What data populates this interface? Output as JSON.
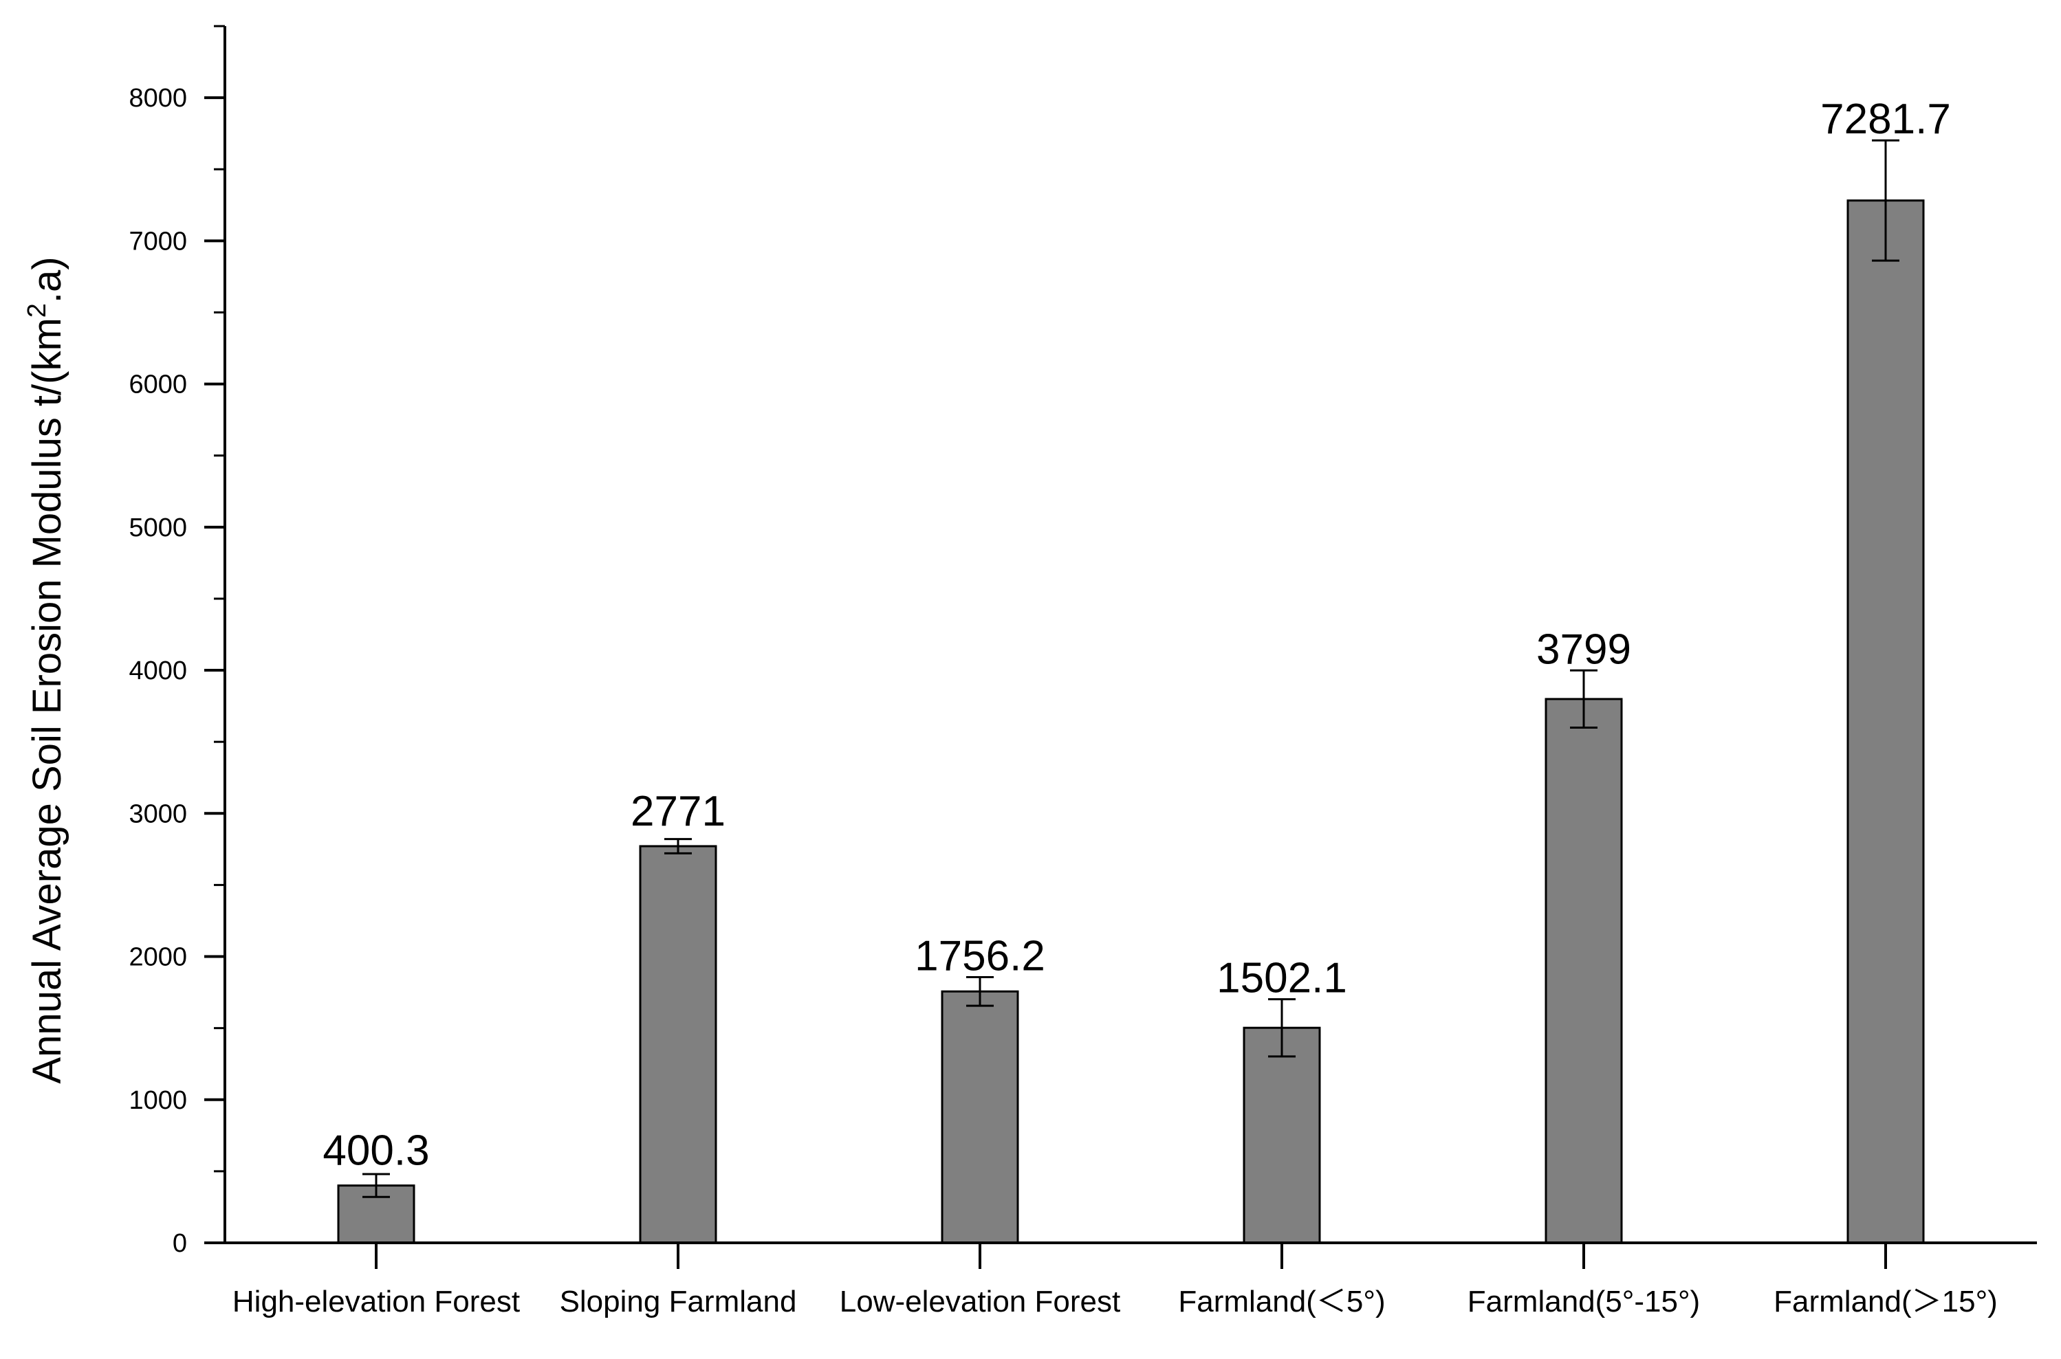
{
  "chart_data": {
    "type": "bar",
    "title": "",
    "xlabel": "",
    "ylabel": "Annual Average Soil Erosion Modulus  t/(km",
    "ylabel_sup": "2",
    "ylabel_end": ".a)",
    "categories": [
      "High-elevation Forest",
      "Sloping Farmland",
      "Low-elevation Forest",
      "Farmland(＜5°)",
      "Farmland(5°-15°)",
      "Farmland(＞15°)"
    ],
    "values": [
      400.3,
      2771,
      1756.2,
      1502.1,
      3799,
      7281.7
    ],
    "value_labels": [
      "400.3",
      "2771",
      "1756.2",
      "1502.1",
      "3799",
      "7281.7"
    ],
    "error": [
      80,
      50,
      100,
      200,
      200,
      420
    ],
    "ylim": [
      0,
      8500
    ],
    "yticks": [
      0,
      1000,
      2000,
      3000,
      4000,
      5000,
      6000,
      7000,
      8000
    ],
    "ytick_labels": [
      "0",
      "1000",
      "2000",
      "3000",
      "4000",
      "5000",
      "6000",
      "7000",
      "8000"
    ],
    "grid": false,
    "legend": "none",
    "colors": {
      "bar_fill": "#808080",
      "bar_stroke": "#000000",
      "axis": "#000000"
    }
  }
}
